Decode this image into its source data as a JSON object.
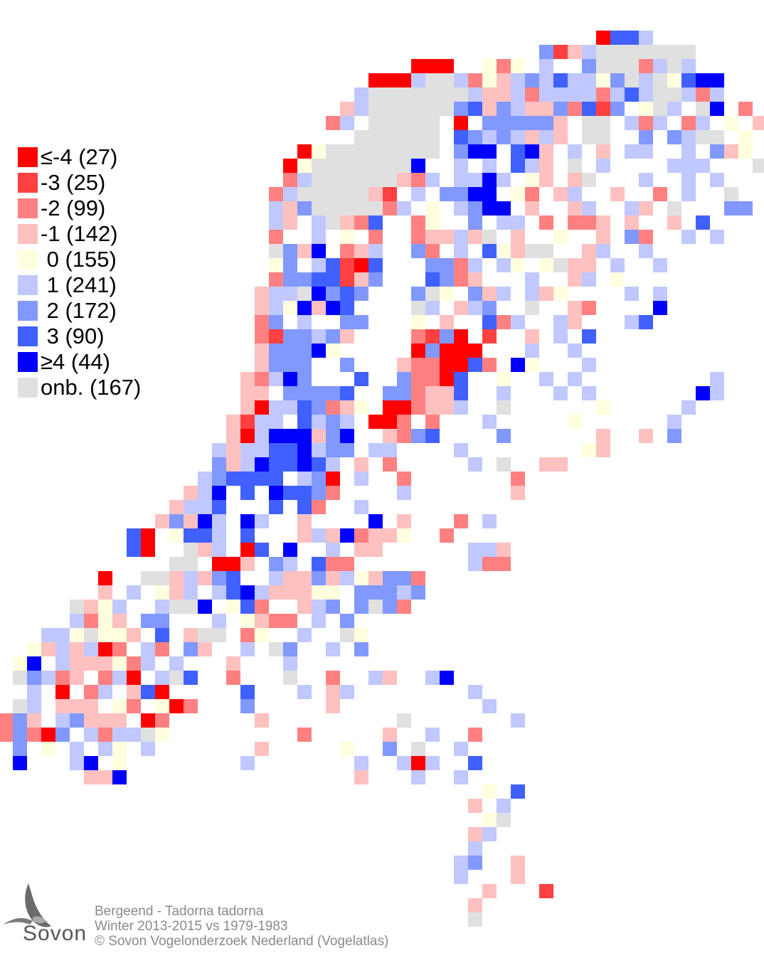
{
  "legend": {
    "items": [
      {
        "code": "a",
        "label": "≤-4 (27)",
        "color": "#ff0000"
      },
      {
        "code": "b",
        "label": "-3 (25)",
        "color": "#ff4040"
      },
      {
        "code": "c",
        "label": "-2 (99)",
        "color": "#ff8080"
      },
      {
        "code": "d",
        "label": "-1 (142)",
        "color": "#ffc0c0"
      },
      {
        "code": "0",
        "label": " 0 (155)",
        "color": "#ffffe0"
      },
      {
        "code": "1",
        "label": " 1 (241)",
        "color": "#c0c8ff"
      },
      {
        "code": "2",
        "label": " 2 (172)",
        "color": "#8098ff"
      },
      {
        "code": "3",
        "label": " 3 (90)",
        "color": "#4060ff"
      },
      {
        "code": "4",
        "label": "≥4 (44)",
        "color": "#0000ff"
      },
      {
        "code": "n",
        "label": "onb. (167)",
        "color": "#e0e0e0"
      }
    ]
  },
  "footer": {
    "species": "Bergeend - Tadorna tadorna",
    "period": "Winter 2013-2015 vs 1979-1983",
    "copyright": "© Sovon Vogelonderzoek Nederland (Vogelatlas)"
  },
  "logo": {
    "text": "Sovon"
  },
  "grid_rows": [
    [
      42,
      "a331"
    ],
    [
      38,
      "2bd1nnnnnnn"
    ],
    [
      29,
      "aaa..0c0.1..2nnnc1n1"
    ],
    [
      26,
      "aaa1nn1c0d12131102n1n0344"
    ],
    [
      25,
      "1nnnnnnn1dd1c1111c131nn1c1..."
    ],
    [
      24,
      "d1nnnnnn23d21dd2c3b2.0n1.n4.c.nn"
    ],
    [
      23,
      "c1.nnnnn.a.22222d.nn.1c1.c1.0.d1.1"
    ],
    [
      23,
      "..nnnnnn.32121d1d.nn..2.21nn.0...1"
    ],
    [
      21,
      "a0nnnnnnnn.244.34d.1.d.11..1.2d0...12"
    ],
    [
      20,
      "a0nnnnnnn4..1.1.31d.n.1....111...n."
    ],
    [
      20,
      "c1nnnnnndc1.1141.0d.dn...1..1.1...1"
    ],
    [
      19,
      "c1nnnnndb.1.2244.0c.d1..d..c.1..n.."
    ],
    [
      19,
      "1d2nnnnnc1.0.1244.d..d1..1d.n...22"
    ],
    [
      19,
      "1d.1ndc3..c0..2.11.c.ccd.d..d.3.."
    ],
    [
      19,
      "c..1.0.c..cdd1dn.d..0..d.2c..1.1"
    ],
    [
      19,
      "n2d4.cd1..2c.1.30dnn..d1..1...."
    ],
    [
      19,
      "02.13ba3...22c1.10.0ndd.1..1...."
    ],
    [
      19,
      "c2233bd2...32cd...1..d1.0......"
    ],
    [
      18,
      "d11n4232...2n0.2d1.1d0....1.1.."
    ],
    [
      18,
      "d104d43....n1.d12..n..dc....4"
    ],
    [
      18,
      "c2.1..22...0.d..3c1..1d...13"
    ],
    [
      18,
      "cb2212d....cb2a.b..d.1.3..."
    ],
    [
      18,
      "d22240.....a2aaa...1..1.."
    ],
    [
      18,
      "d222..2...dccaa3c.40...1."
    ],
    [
      17,
      "dc142...3..2cca3..0..1.1.........1"
    ],
    [
      17,
      "dd.22223..22cdd3..1...1.1.......41"
    ],
    [
      17,
      "da1132cd0.aacdd1..n......0.....1.."
    ],
    [
      16,
      "db11.3121.aac.c...1.....0......1"
    ],
    [
      16,
      "da1444d24..dc23....2......d..d.2"
    ],
    [
      15,
      "1d11334122.11....1........0d"
    ],
    [
      15,
      "2d1433431.d.c.....1.n..dd.."
    ],
    [
      14,
      "123333.12a.1..c.......c..."
    ],
    [
      13,
      "d14.3.4332c....1.......d."
    ],
    [
      12,
      "d113...3.3c..1........"
    ],
    [
      11,
      "d2d41.41..d....4.d...c.1"
    ],
    [
      9,
      "3a.0331.3...d1d4cdd0..c.."
    ],
    [
      9,
      "3a..nd1.a3.4..1.dd......11d"
    ],
    [
      10,
      "..nn.aad.21.3cc........1cc"
    ],
    [
      7,
      "a..nnd1d23..1dd2d10d22c"
    ],
    [
      7,
      "d.1.0d1.1341ddd00.22212"
    ],
    [
      5,
      "nd01..1nn4.03c..d12.2n2c"
    ],
    [
      5,
      "1c0d.22...1.0dcc.1.2..."
    ],
    [
      3,
      "110n00d.3.dnn.c0..1..n0"
    ],
    [
      2,
      "0d1d1ac.1c.2d..1.n2..1.2"
    ],
    [
      1,
      "04.1ddd0c1.1...d...1."
    ],
    [
      1,
      "n21cd.c1a.1n3..c...n..c..1d..14"
    ],
    [
      1,
      ".1.a.c1.d3a.....3...1.d1........1"
    ],
    [
      1,
      "n1.ddd.0c.0ac...2.....d..........1"
    ],
    [
      0,
      "c2d.12ddd.ac......d.........n.......1"
    ],
    [
      0,
      "c2ca2.1c11n0.........c.....d..1..c.."
    ],
    [
      1,
      "2.0.1.10.1.......d.....0..2.n..1"
    ],
    [
      1,
      "4...14.0........1.......1..1a1..3"
    ],
    [
      6,
      "dd4................d...1..1"
    ],
    [
      34,
      "0.3"
    ],
    [
      33,
      "d.1"
    ],
    [
      34,
      "0n"
    ],
    [
      33,
      "d1"
    ],
    [
      33,
      "1"
    ],
    [
      32,
      "12..d"
    ],
    [
      32,
      "1...d"
    ],
    [
      33,
      ".d...b"
    ],
    [
      33,
      "d"
    ],
    [
      33,
      "n"
    ]
  ]
}
